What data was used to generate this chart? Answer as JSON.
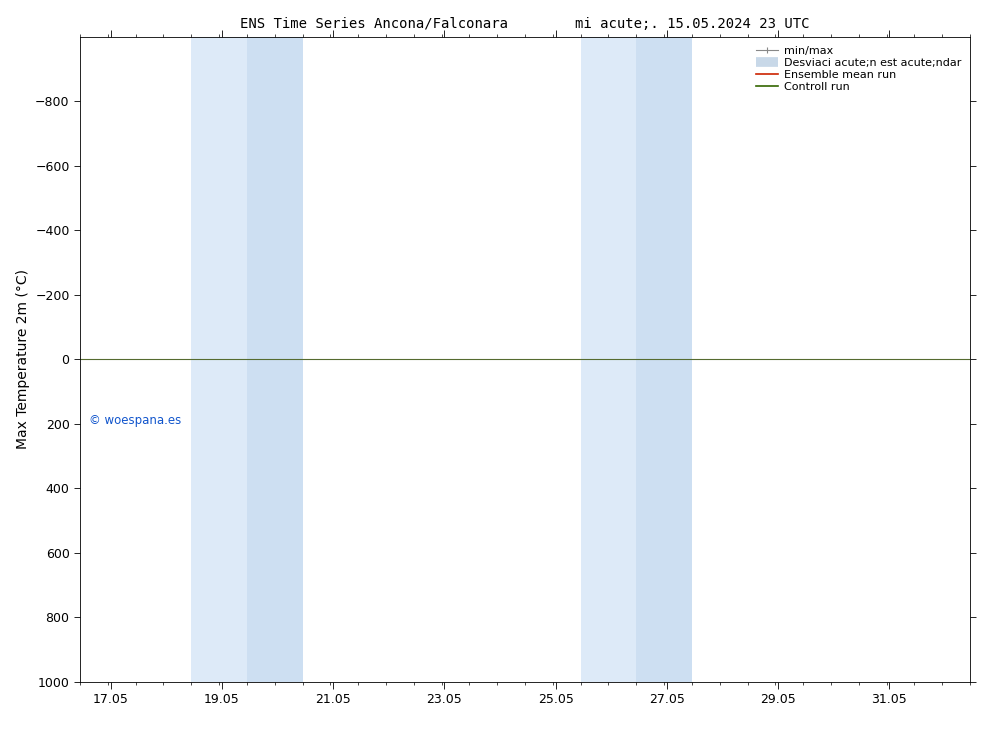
{
  "title": "ENS Time Series Ancona/Falconara        mi acute;. 15.05.2024 23 UTC",
  "ylabel": "Max Temperature 2m (°C)",
  "background_color": "#ffffff",
  "plot_bg_color": "#ffffff",
  "ylim_bottom": 1000,
  "ylim_top": -1000,
  "yticks": [
    -800,
    -600,
    -400,
    -200,
    0,
    200,
    400,
    600,
    800,
    1000
  ],
  "xlim_left": 16.5,
  "xlim_right": 32.5,
  "xtick_labels": [
    "17.05",
    "19.05",
    "21.05",
    "23.05",
    "25.05",
    "27.05",
    "29.05",
    "31.05"
  ],
  "xtick_positions": [
    17.05,
    19.05,
    21.05,
    23.05,
    25.05,
    27.05,
    29.05,
    31.05
  ],
  "shade_regions": [
    {
      "xmin": 18.5,
      "xmax": 19.5,
      "color": "#ddeaf7"
    },
    {
      "xmin": 19.5,
      "xmax": 20.5,
      "color": "#ccdff0"
    },
    {
      "xmin": 25.5,
      "xmax": 26.5,
      "color": "#ddeaf7"
    },
    {
      "xmin": 26.5,
      "xmax": 27.5,
      "color": "#ccdff0"
    }
  ],
  "hline_y": 0,
  "hline_color": "#556b2f",
  "watermark": "© woespana.es",
  "watermark_color": "#1155cc",
  "minor_xtick_interval": 0.5,
  "font_size": 10,
  "tick_font_size": 9,
  "legend_labels": [
    "min/max",
    "Desviaci acute;n est acute;ndar",
    "Ensemble mean run",
    "Controll run"
  ],
  "legend_colors_line": [
    "#aaaaaa",
    "#ccddee",
    "#dd0000",
    "#336600"
  ],
  "legend_linewidths": [
    1.0,
    6.0,
    1.2,
    1.2
  ]
}
